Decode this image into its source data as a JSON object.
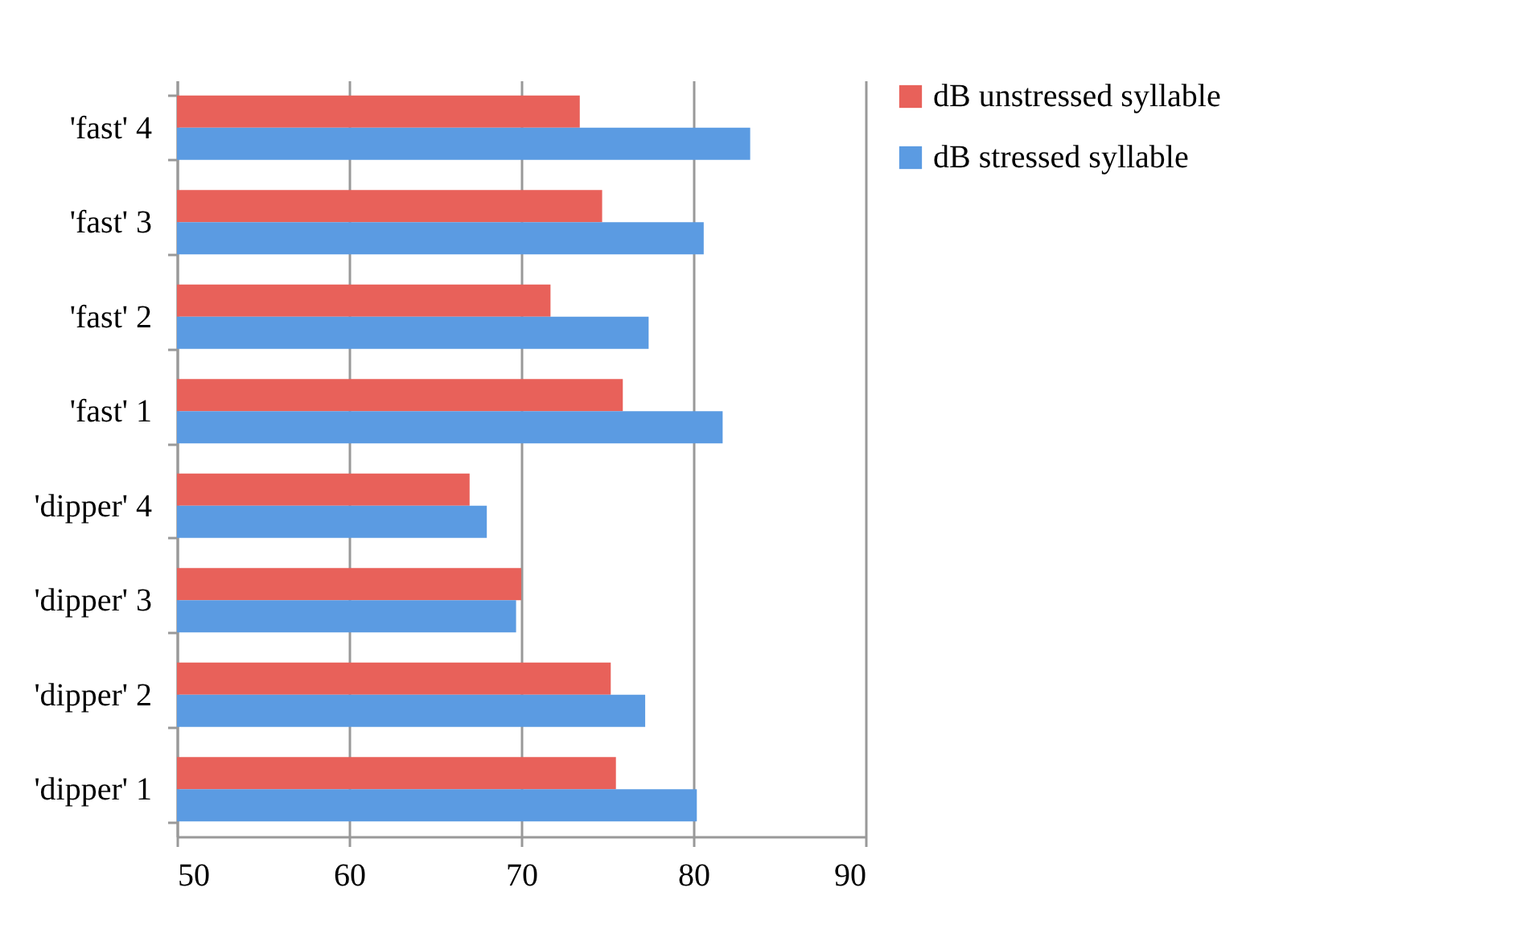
{
  "chart_data": {
    "type": "bar",
    "orientation": "horizontal",
    "categories": [
      "'fast' 4",
      "'fast' 3",
      "'fast' 2",
      "'fast' 1",
      "'dipper' 4",
      "'dipper' 3",
      "'dipper' 2",
      "'dipper' 1"
    ],
    "series": [
      {
        "name": "dB unstressed syllable",
        "color": "#e8615a",
        "values": [
          73.4,
          74.7,
          71.7,
          75.9,
          67.0,
          70.0,
          75.2,
          75.5
        ]
      },
      {
        "name": "dB stressed syllable",
        "color": "#5b9be2",
        "values": [
          83.3,
          80.6,
          77.4,
          81.7,
          68.0,
          69.7,
          77.2,
          80.2
        ]
      }
    ],
    "xlim": [
      50,
      90
    ],
    "xticks": [
      50,
      60,
      70,
      80,
      90
    ],
    "grid": "x",
    "legend": "right"
  }
}
